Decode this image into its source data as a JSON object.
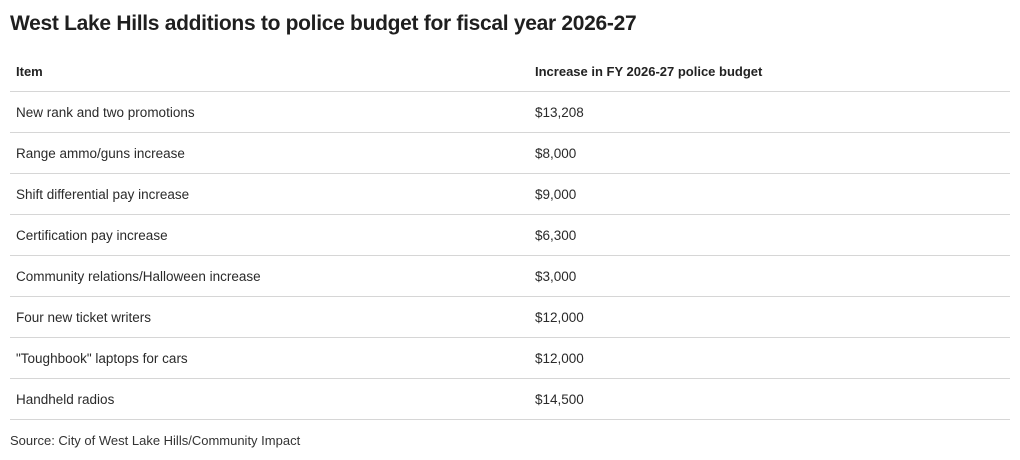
{
  "chart_data": {
    "type": "table",
    "title": "West Lake Hills additions to police budget for fiscal year 2026-27",
    "columns": [
      "Item",
      "Increase in FY 2026-27 police budget"
    ],
    "rows": [
      [
        "New rank and two promotions",
        "$13,208"
      ],
      [
        "Range ammo/guns increase",
        "$8,000"
      ],
      [
        "Shift differential pay increase",
        "$9,000"
      ],
      [
        "Certification pay increase",
        "$6,300"
      ],
      [
        "Community relations/Halloween increase",
        "$3,000"
      ],
      [
        "Four new ticket writers",
        "$12,000"
      ],
      [
        "\"Toughbook\" laptops for cars",
        "$12,000"
      ],
      [
        "Handheld radios",
        "$14,500"
      ]
    ],
    "source": "Source: City of West Lake Hills/Community Impact"
  }
}
